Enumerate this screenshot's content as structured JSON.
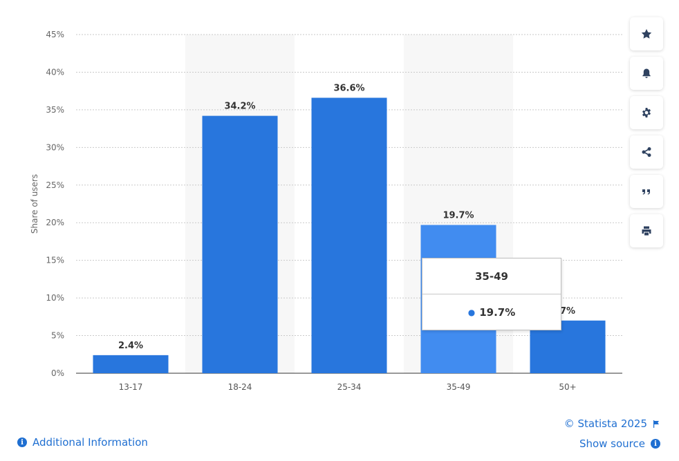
{
  "chart_data": {
    "type": "bar",
    "categories": [
      "13-17",
      "18-24",
      "25-34",
      "35-49",
      "50+"
    ],
    "values": [
      2.4,
      34.2,
      36.6,
      19.7,
      7
    ],
    "value_labels": [
      "2.4%",
      "34.2%",
      "36.6%",
      "19.7%",
      "7%"
    ],
    "ylabel": "Share of users",
    "ylim": [
      0,
      45
    ],
    "yticks": [
      "0%",
      "5%",
      "10%",
      "15%",
      "20%",
      "25%",
      "30%",
      "35%",
      "40%",
      "45%"
    ],
    "grid": true,
    "highlighted_category": "35-49"
  },
  "colors": {
    "bar": "#2876dd",
    "bar_highlight": "#418cf0",
    "band": "#f7f7f7",
    "link": "#1f6fd1"
  },
  "tooltip": {
    "title": "35-49",
    "value": "19.7%"
  },
  "toolbar": {
    "icons": [
      "star-icon",
      "bell-icon",
      "gear-icon",
      "share-icon",
      "quote-icon",
      "print-icon"
    ]
  },
  "footer": {
    "additional_info": "Additional Information",
    "copyright": "© Statista 2025",
    "show_source": "Show source"
  }
}
